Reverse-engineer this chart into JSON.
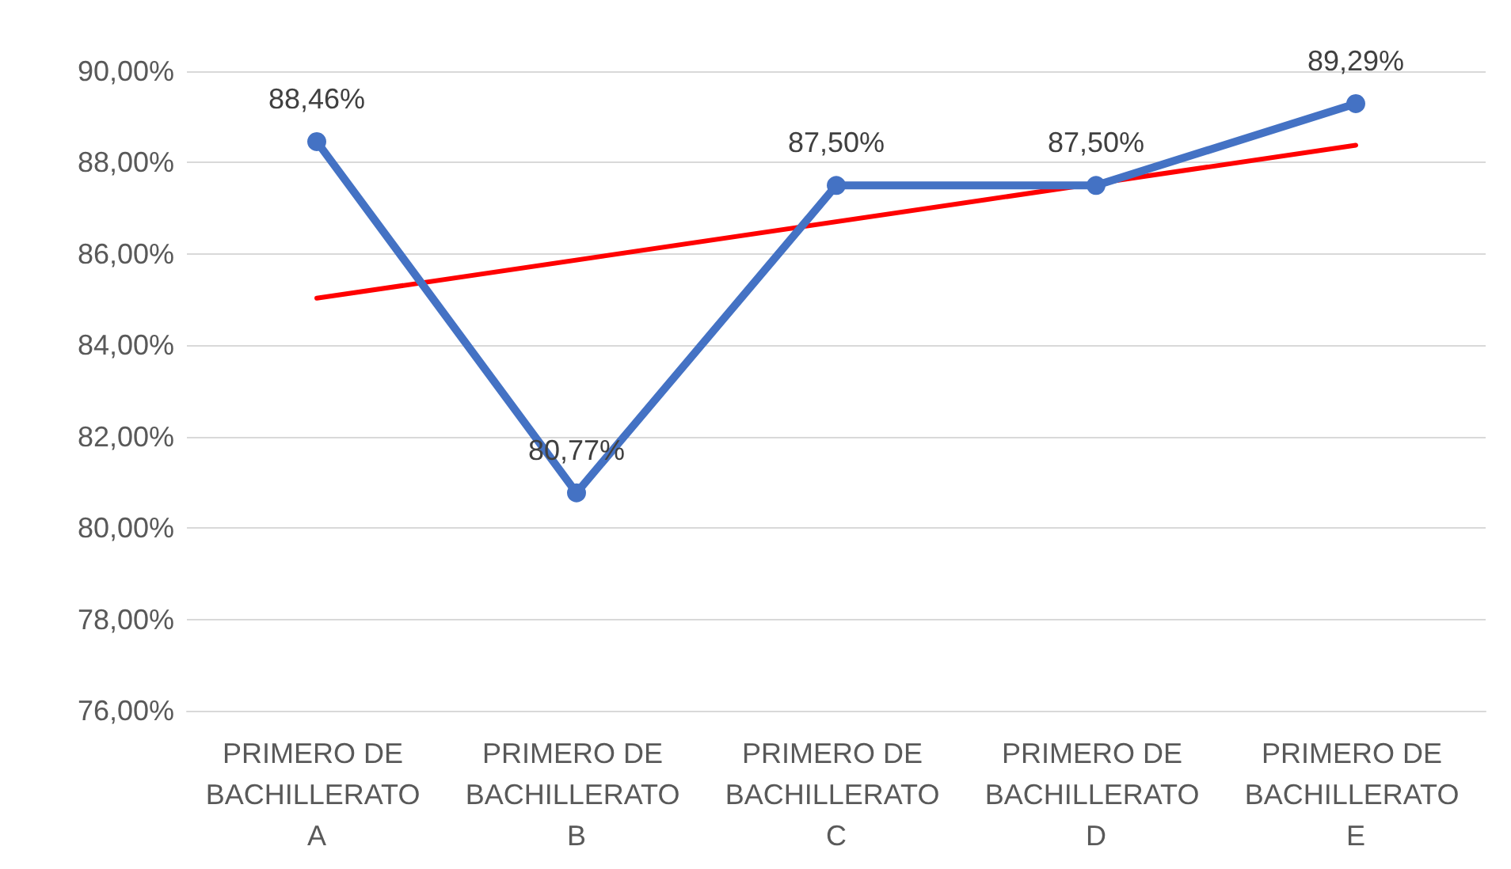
{
  "chart_data": {
    "type": "line",
    "categories": [
      "PRIMERO DE BACHILLERATO A",
      "PRIMERO DE BACHILLERATO B",
      "PRIMERO DE BACHILLERATO C",
      "PRIMERO DE BACHILLERATO D",
      "PRIMERO DE BACHILLERATO E"
    ],
    "series": [
      {
        "color": "#4472c4",
        "values": [
          88.46,
          80.77,
          87.5,
          87.5,
          89.29
        ],
        "value_labels": [
          "88,46%",
          "80,77%",
          "87,50%",
          "87,50%",
          "89,29%"
        ],
        "marker": "circle"
      },
      {
        "type": "line",
        "color": "#ff0000",
        "values": [
          85.03,
          null,
          null,
          null,
          88.38
        ],
        "marker": "none"
      }
    ],
    "ylim": [
      76,
      90
    ],
    "yticks": [
      {
        "value": 76,
        "label": "76,00%"
      },
      {
        "value": 78,
        "label": "78,00%"
      },
      {
        "value": 80,
        "label": "80,00%"
      },
      {
        "value": 82,
        "label": "82,00%"
      },
      {
        "value": 84,
        "label": "84,00%"
      },
      {
        "value": 86,
        "label": "86,00%"
      },
      {
        "value": 88,
        "label": "88,00%"
      },
      {
        "value": 90,
        "label": "90,00%"
      }
    ],
    "grid": "y",
    "line_style": "solid"
  }
}
